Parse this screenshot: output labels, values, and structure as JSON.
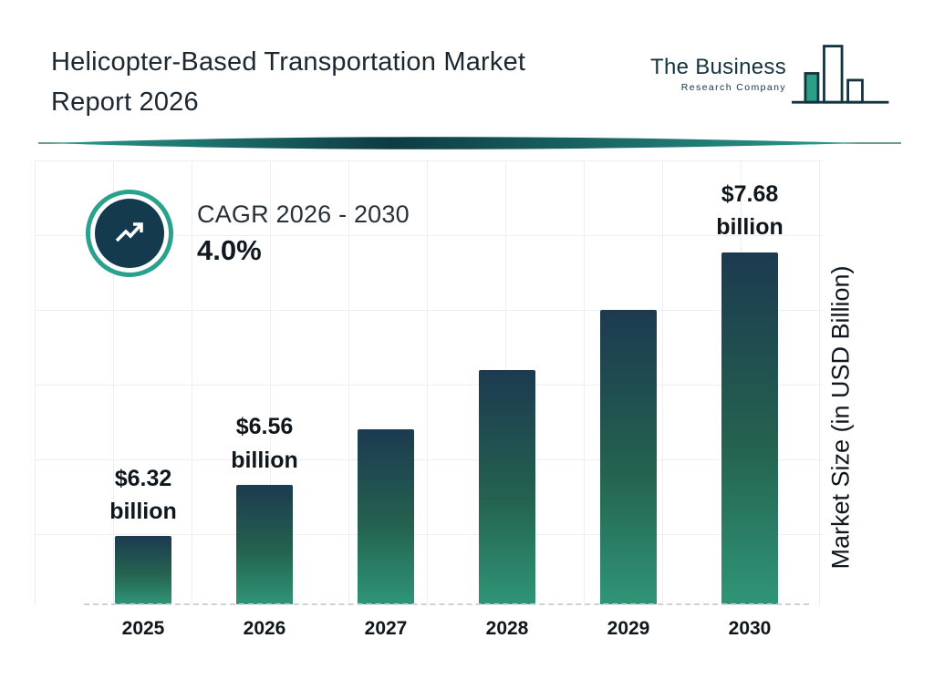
{
  "header": {
    "title_line1": "Helicopter-Based Transportation Market",
    "title_line2": "Report 2026",
    "logo": {
      "name": "The Business",
      "subtitle": "Research Company"
    }
  },
  "cagr": {
    "label": "CAGR 2026 - 2030",
    "value": "4.0%"
  },
  "chart_data": {
    "type": "bar",
    "title": "Helicopter-Based Transportation Market Report 2026",
    "categories": [
      "2025",
      "2026",
      "2027",
      "2028",
      "2029",
      "2030"
    ],
    "values": [
      6.32,
      6.56,
      6.82,
      7.1,
      7.38,
      7.68
    ],
    "bar_labels": [
      {
        "value": "$6.32",
        "unit": "billion"
      },
      {
        "value": "$6.56",
        "unit": "billion"
      },
      null,
      null,
      null,
      {
        "value": "$7.68",
        "unit": "billion"
      }
    ],
    "labeled_years_note": "only 2025, 2026 and 2030 carry data labels; 2027-2029 estimated from bar heights at 4.0% CAGR",
    "xlabel": "",
    "ylabel": "Market Size (in USD Billion)",
    "ylim": [
      6.0,
      8.0
    ],
    "grid": true,
    "legend": false,
    "colors": {
      "bar_gradient_top": "#1c3a50",
      "bar_gradient_bottom": "#2f9577",
      "accent_teal": "#2aa18c",
      "badge_circle": "#143a4e",
      "ink": "#10181f"
    }
  }
}
